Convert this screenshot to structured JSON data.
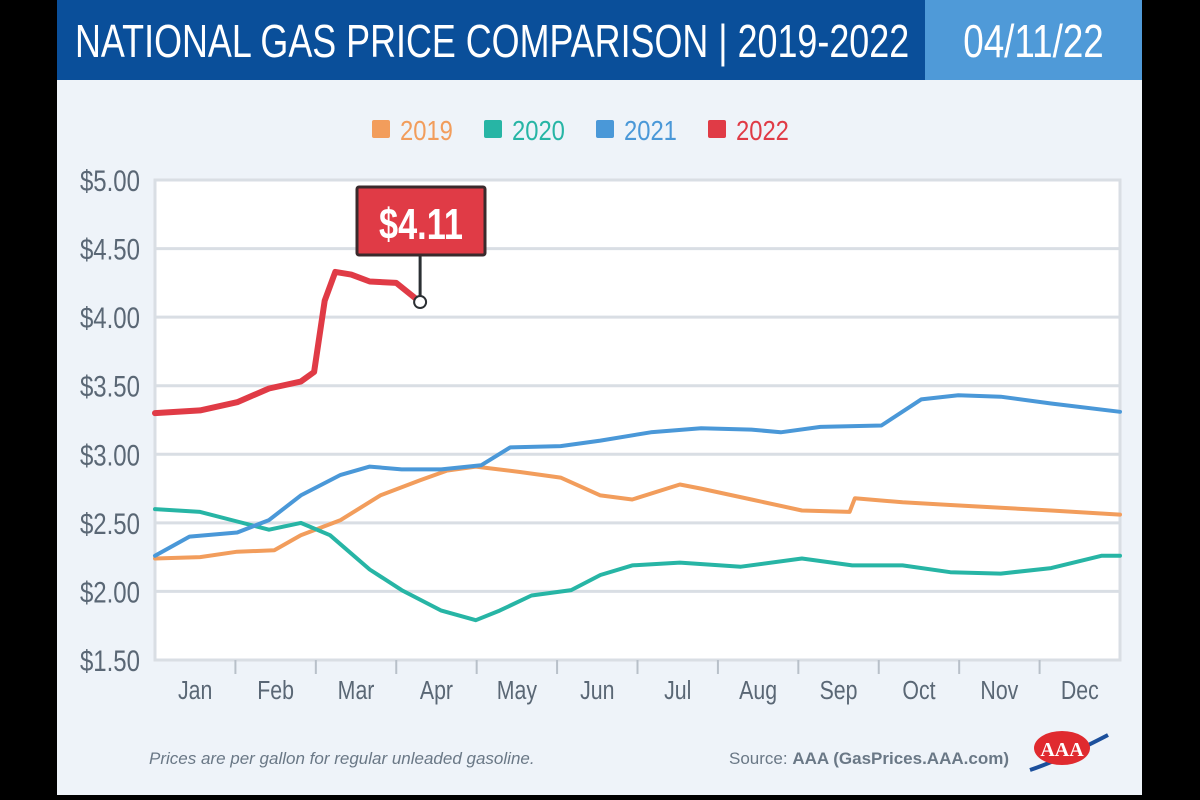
{
  "header": {
    "title": "NATIONAL GAS PRICE COMPARISON | 2019-2022",
    "date": "04/11/22"
  },
  "footer": {
    "note": "Prices are per gallon for regular unleaded gasoline.",
    "source_label": "Source:",
    "source_value": "AAA (GasPrices.AAA.com)",
    "logo_text": "AAA"
  },
  "chart_data": {
    "type": "line",
    "title": "NATIONAL GAS PRICE COMPARISON | 2019-2022",
    "xlabel": "",
    "ylabel": "",
    "x_ticks": [
      "Jan",
      "Feb",
      "Mar",
      "Apr",
      "May",
      "Jun",
      "Jul",
      "Aug",
      "Sep",
      "Oct",
      "Nov",
      "Dec"
    ],
    "y_ticks": [
      "$1.50",
      "$2.00",
      "$2.50",
      "$3.00",
      "$3.50",
      "$4.00",
      "$4.50",
      "$5.00"
    ],
    "ylim": [
      1.5,
      5.0
    ],
    "grid": true,
    "legend_position": "top",
    "annotation": {
      "label": "$4.11",
      "x": "Apr 11",
      "y": 4.11
    },
    "series": [
      {
        "name": "2019",
        "color": "#f29d5c",
        "points": [
          [
            "Jan 1",
            2.24
          ],
          [
            "Jan 18",
            2.25
          ],
          [
            "Feb 1",
            2.29
          ],
          [
            "Feb 15",
            2.3
          ],
          [
            "Feb 25",
            2.41
          ],
          [
            "Mar 12",
            2.52
          ],
          [
            "Mar 27",
            2.7
          ],
          [
            "Apr 11",
            2.81
          ],
          [
            "Apr 21",
            2.88
          ],
          [
            "May 2",
            2.91
          ],
          [
            "May 19",
            2.87
          ],
          [
            "Jun 3",
            2.83
          ],
          [
            "Jun 18",
            2.7
          ],
          [
            "Jun 30",
            2.67
          ],
          [
            "Jul 18",
            2.78
          ],
          [
            "Jul 26",
            2.75
          ],
          [
            "Aug 14",
            2.67
          ],
          [
            "Sep 2",
            2.59
          ],
          [
            "Sep 20",
            2.58
          ],
          [
            "Sep 22",
            2.68
          ],
          [
            "Oct 10",
            2.65
          ],
          [
            "Oct 28",
            2.63
          ],
          [
            "Nov 16",
            2.61
          ],
          [
            "Dec 5",
            2.59
          ],
          [
            "Dec 31",
            2.56
          ]
        ]
      },
      {
        "name": "2020",
        "color": "#27b5a5",
        "points": [
          [
            "Jan 1",
            2.6
          ],
          [
            "Jan 18",
            2.58
          ],
          [
            "Feb 1",
            2.51
          ],
          [
            "Feb 13",
            2.45
          ],
          [
            "Feb 25",
            2.5
          ],
          [
            "Mar 8",
            2.41
          ],
          [
            "Mar 23",
            2.16
          ],
          [
            "Apr 4",
            2.01
          ],
          [
            "Apr 19",
            1.86
          ],
          [
            "May 2",
            1.79
          ],
          [
            "May 11",
            1.86
          ],
          [
            "May 23",
            1.97
          ],
          [
            "Jun 7",
            2.01
          ],
          [
            "Jun 18",
            2.12
          ],
          [
            "Jun 30",
            2.19
          ],
          [
            "Jul 18",
            2.21
          ],
          [
            "Aug 10",
            2.18
          ],
          [
            "Sep 2",
            2.24
          ],
          [
            "Sep 21",
            2.19
          ],
          [
            "Oct 10",
            2.19
          ],
          [
            "Oct 28",
            2.14
          ],
          [
            "Nov 16",
            2.13
          ],
          [
            "Dec 5",
            2.17
          ],
          [
            "Dec 24",
            2.26
          ],
          [
            "Dec 31",
            2.26
          ]
        ]
      },
      {
        "name": "2021",
        "color": "#4a98d8",
        "points": [
          [
            "Jan 1",
            2.26
          ],
          [
            "Jan 14",
            2.4
          ],
          [
            "Feb 1",
            2.43
          ],
          [
            "Feb 13",
            2.52
          ],
          [
            "Feb 25",
            2.7
          ],
          [
            "Mar 12",
            2.85
          ],
          [
            "Mar 23",
            2.91
          ],
          [
            "Apr 4",
            2.89
          ],
          [
            "Apr 19",
            2.89
          ],
          [
            "May 4",
            2.92
          ],
          [
            "May 15",
            3.05
          ],
          [
            "Jun 3",
            3.06
          ],
          [
            "Jun 18",
            3.1
          ],
          [
            "Jul 7",
            3.16
          ],
          [
            "Jul 26",
            3.19
          ],
          [
            "Aug 14",
            3.18
          ],
          [
            "Aug 25",
            3.16
          ],
          [
            "Sep 9",
            3.2
          ],
          [
            "Oct 2",
            3.21
          ],
          [
            "Oct 17",
            3.4
          ],
          [
            "Oct 31",
            3.43
          ],
          [
            "Nov 16",
            3.42
          ],
          [
            "Dec 5",
            3.37
          ],
          [
            "Dec 31",
            3.31
          ]
        ]
      },
      {
        "name": "2022",
        "color": "#e03b46",
        "points": [
          [
            "Jan 1",
            3.3
          ],
          [
            "Jan 18",
            3.32
          ],
          [
            "Feb 1",
            3.38
          ],
          [
            "Feb 13",
            3.48
          ],
          [
            "Feb 25",
            3.53
          ],
          [
            "Mar 2",
            3.6
          ],
          [
            "Mar 6",
            4.12
          ],
          [
            "Mar 10",
            4.33
          ],
          [
            "Mar 16",
            4.31
          ],
          [
            "Mar 23",
            4.26
          ],
          [
            "Apr 2",
            4.25
          ],
          [
            "Apr 11",
            4.11
          ]
        ]
      }
    ]
  }
}
